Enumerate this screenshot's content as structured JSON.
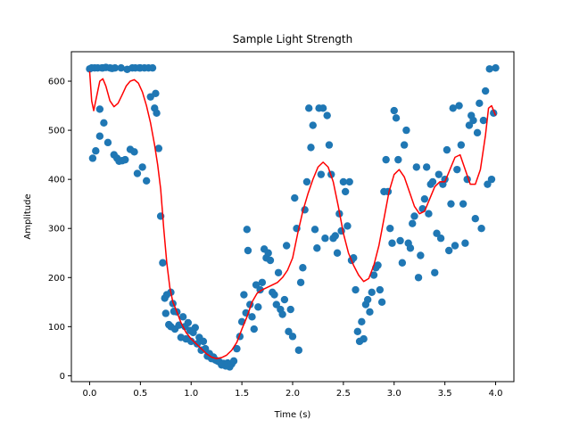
{
  "chart_data": {
    "type": "scatter",
    "title": "Sample Light Strength",
    "xlabel": "Time (s)",
    "ylabel": "Amplitude",
    "xlim": [
      -0.18,
      4.18
    ],
    "ylim": [
      -12,
      660
    ],
    "xticks": [
      0.0,
      0.5,
      1.0,
      1.5,
      2.0,
      2.5,
      3.0,
      3.5,
      4.0
    ],
    "xtick_labels": [
      "0.0",
      "0.5",
      "1.0",
      "1.5",
      "2.0",
      "2.5",
      "3.0",
      "3.5",
      "4.0"
    ],
    "yticks": [
      0,
      100,
      200,
      300,
      400,
      500,
      600
    ],
    "ytick_labels": [
      "0",
      "100",
      "200",
      "300",
      "400",
      "500",
      "600"
    ],
    "grid": false,
    "legend": "none",
    "series": [
      {
        "kind": "scatter",
        "color": "#1f77b4",
        "points": [
          [
            0.0,
            625
          ],
          [
            0.02,
            627
          ],
          [
            0.03,
            443
          ],
          [
            0.05,
            627
          ],
          [
            0.06,
            458
          ],
          [
            0.08,
            627
          ],
          [
            0.1,
            543
          ],
          [
            0.1,
            488
          ],
          [
            0.12,
            627
          ],
          [
            0.13,
            627
          ],
          [
            0.14,
            515
          ],
          [
            0.16,
            628
          ],
          [
            0.18,
            475
          ],
          [
            0.2,
            627
          ],
          [
            0.22,
            626
          ],
          [
            0.24,
            450
          ],
          [
            0.25,
            627
          ],
          [
            0.27,
            443
          ],
          [
            0.29,
            437
          ],
          [
            0.31,
            627
          ],
          [
            0.32,
            438
          ],
          [
            0.35,
            440
          ],
          [
            0.37,
            624
          ],
          [
            0.4,
            461
          ],
          [
            0.42,
            627
          ],
          [
            0.44,
            456
          ],
          [
            0.45,
            627
          ],
          [
            0.47,
            412
          ],
          [
            0.49,
            627
          ],
          [
            0.5,
            627
          ],
          [
            0.52,
            425
          ],
          [
            0.54,
            627
          ],
          [
            0.56,
            397
          ],
          [
            0.58,
            627
          ],
          [
            0.6,
            568
          ],
          [
            0.62,
            627
          ],
          [
            0.64,
            545
          ],
          [
            0.65,
            575
          ],
          [
            0.66,
            535
          ],
          [
            0.68,
            463
          ],
          [
            0.7,
            325
          ],
          [
            0.72,
            230
          ],
          [
            0.74,
            158
          ],
          [
            0.75,
            127
          ],
          [
            0.76,
            165
          ],
          [
            0.78,
            104
          ],
          [
            0.8,
            170
          ],
          [
            0.8,
            100
          ],
          [
            0.82,
            147
          ],
          [
            0.83,
            131
          ],
          [
            0.84,
            95
          ],
          [
            0.86,
            130
          ],
          [
            0.88,
            103
          ],
          [
            0.9,
            78
          ],
          [
            0.92,
            120
          ],
          [
            0.94,
            100
          ],
          [
            0.95,
            75
          ],
          [
            0.97,
            108
          ],
          [
            0.99,
            92
          ],
          [
            1.0,
            70
          ],
          [
            1.02,
            88
          ],
          [
            1.04,
            98
          ],
          [
            1.06,
            65
          ],
          [
            1.08,
            78
          ],
          [
            1.1,
            52
          ],
          [
            1.12,
            70
          ],
          [
            1.14,
            55
          ],
          [
            1.16,
            40
          ],
          [
            1.18,
            45
          ],
          [
            1.2,
            35
          ],
          [
            1.22,
            38
          ],
          [
            1.24,
            32
          ],
          [
            1.26,
            30
          ],
          [
            1.28,
            28
          ],
          [
            1.3,
            22
          ],
          [
            1.32,
            25
          ],
          [
            1.34,
            20
          ],
          [
            1.36,
            26
          ],
          [
            1.38,
            18
          ],
          [
            1.4,
            24
          ],
          [
            1.42,
            30
          ],
          [
            1.45,
            55
          ],
          [
            1.48,
            80
          ],
          [
            1.5,
            110
          ],
          [
            1.52,
            165
          ],
          [
            1.54,
            128
          ],
          [
            1.55,
            298
          ],
          [
            1.56,
            255
          ],
          [
            1.58,
            145
          ],
          [
            1.6,
            120
          ],
          [
            1.62,
            95
          ],
          [
            1.64,
            185
          ],
          [
            1.66,
            140
          ],
          [
            1.68,
            175
          ],
          [
            1.7,
            190
          ],
          [
            1.72,
            258
          ],
          [
            1.74,
            240
          ],
          [
            1.76,
            250
          ],
          [
            1.78,
            235
          ],
          [
            1.8,
            170
          ],
          [
            1.82,
            165
          ],
          [
            1.84,
            145
          ],
          [
            1.86,
            210
          ],
          [
            1.88,
            135
          ],
          [
            1.9,
            125
          ],
          [
            1.92,
            155
          ],
          [
            1.94,
            265
          ],
          [
            1.96,
            90
          ],
          [
            1.98,
            135
          ],
          [
            2.0,
            80
          ],
          [
            2.02,
            362
          ],
          [
            2.04,
            300
          ],
          [
            2.06,
            52
          ],
          [
            2.08,
            190
          ],
          [
            2.1,
            220
          ],
          [
            2.12,
            338
          ],
          [
            2.14,
            395
          ],
          [
            2.16,
            545
          ],
          [
            2.18,
            465
          ],
          [
            2.2,
            510
          ],
          [
            2.22,
            298
          ],
          [
            2.24,
            260
          ],
          [
            2.26,
            545
          ],
          [
            2.28,
            410
          ],
          [
            2.3,
            545
          ],
          [
            2.32,
            280
          ],
          [
            2.34,
            530
          ],
          [
            2.36,
            470
          ],
          [
            2.38,
            410
          ],
          [
            2.4,
            280
          ],
          [
            2.42,
            285
          ],
          [
            2.44,
            250
          ],
          [
            2.46,
            330
          ],
          [
            2.48,
            295
          ],
          [
            2.5,
            395
          ],
          [
            2.52,
            375
          ],
          [
            2.54,
            305
          ],
          [
            2.56,
            395
          ],
          [
            2.58,
            235
          ],
          [
            2.6,
            240
          ],
          [
            2.62,
            175
          ],
          [
            2.64,
            90
          ],
          [
            2.66,
            70
          ],
          [
            2.68,
            110
          ],
          [
            2.7,
            75
          ],
          [
            2.72,
            145
          ],
          [
            2.74,
            155
          ],
          [
            2.76,
            130
          ],
          [
            2.78,
            170
          ],
          [
            2.8,
            205
          ],
          [
            2.82,
            220
          ],
          [
            2.84,
            225
          ],
          [
            2.86,
            175
          ],
          [
            2.88,
            150
          ],
          [
            2.9,
            375
          ],
          [
            2.92,
            440
          ],
          [
            2.94,
            375
          ],
          [
            2.96,
            300
          ],
          [
            2.98,
            270
          ],
          [
            3.0,
            540
          ],
          [
            3.02,
            525
          ],
          [
            3.04,
            440
          ],
          [
            3.06,
            275
          ],
          [
            3.08,
            230
          ],
          [
            3.1,
            470
          ],
          [
            3.12,
            500
          ],
          [
            3.14,
            270
          ],
          [
            3.16,
            260
          ],
          [
            3.18,
            310
          ],
          [
            3.2,
            325
          ],
          [
            3.22,
            425
          ],
          [
            3.24,
            200
          ],
          [
            3.26,
            245
          ],
          [
            3.28,
            340
          ],
          [
            3.3,
            360
          ],
          [
            3.32,
            425
          ],
          [
            3.34,
            330
          ],
          [
            3.36,
            390
          ],
          [
            3.38,
            395
          ],
          [
            3.4,
            210
          ],
          [
            3.42,
            290
          ],
          [
            3.44,
            410
          ],
          [
            3.46,
            280
          ],
          [
            3.48,
            390
          ],
          [
            3.5,
            400
          ],
          [
            3.52,
            460
          ],
          [
            3.54,
            255
          ],
          [
            3.56,
            350
          ],
          [
            3.58,
            545
          ],
          [
            3.6,
            265
          ],
          [
            3.62,
            420
          ],
          [
            3.64,
            550
          ],
          [
            3.66,
            470
          ],
          [
            3.68,
            350
          ],
          [
            3.7,
            270
          ],
          [
            3.72,
            400
          ],
          [
            3.74,
            510
          ],
          [
            3.76,
            530
          ],
          [
            3.78,
            520
          ],
          [
            3.8,
            320
          ],
          [
            3.82,
            495
          ],
          [
            3.84,
            555
          ],
          [
            3.86,
            300
          ],
          [
            3.88,
            520
          ],
          [
            3.9,
            580
          ],
          [
            3.92,
            390
          ],
          [
            3.94,
            625
          ],
          [
            3.96,
            400
          ],
          [
            3.98,
            535
          ],
          [
            4.0,
            627
          ]
        ]
      },
      {
        "kind": "line",
        "color": "#ff0000",
        "points": [
          [
            0.0,
            620
          ],
          [
            0.02,
            560
          ],
          [
            0.04,
            540
          ],
          [
            0.07,
            570
          ],
          [
            0.1,
            600
          ],
          [
            0.13,
            605
          ],
          [
            0.16,
            590
          ],
          [
            0.2,
            560
          ],
          [
            0.24,
            548
          ],
          [
            0.28,
            555
          ],
          [
            0.32,
            572
          ],
          [
            0.36,
            590
          ],
          [
            0.4,
            600
          ],
          [
            0.44,
            603
          ],
          [
            0.48,
            596
          ],
          [
            0.52,
            578
          ],
          [
            0.56,
            550
          ],
          [
            0.6,
            515
          ],
          [
            0.64,
            470
          ],
          [
            0.67,
            430
          ],
          [
            0.7,
            380
          ],
          [
            0.73,
            300
          ],
          [
            0.76,
            230
          ],
          [
            0.79,
            180
          ],
          [
            0.82,
            150
          ],
          [
            0.86,
            130
          ],
          [
            0.9,
            108
          ],
          [
            0.95,
            88
          ],
          [
            1.0,
            75
          ],
          [
            1.05,
            65
          ],
          [
            1.1,
            55
          ],
          [
            1.15,
            45
          ],
          [
            1.2,
            38
          ],
          [
            1.25,
            35
          ],
          [
            1.3,
            37
          ],
          [
            1.35,
            42
          ],
          [
            1.4,
            52
          ],
          [
            1.45,
            68
          ],
          [
            1.5,
            95
          ],
          [
            1.55,
            120
          ],
          [
            1.6,
            150
          ],
          [
            1.65,
            168
          ],
          [
            1.7,
            175
          ],
          [
            1.75,
            180
          ],
          [
            1.8,
            185
          ],
          [
            1.85,
            190
          ],
          [
            1.9,
            200
          ],
          [
            1.95,
            215
          ],
          [
            2.0,
            240
          ],
          [
            2.05,
            290
          ],
          [
            2.1,
            335
          ],
          [
            2.15,
            370
          ],
          [
            2.2,
            400
          ],
          [
            2.25,
            425
          ],
          [
            2.3,
            435
          ],
          [
            2.35,
            425
          ],
          [
            2.4,
            395
          ],
          [
            2.45,
            345
          ],
          [
            2.5,
            290
          ],
          [
            2.55,
            250
          ],
          [
            2.6,
            225
          ],
          [
            2.65,
            205
          ],
          [
            2.7,
            192
          ],
          [
            2.75,
            198
          ],
          [
            2.8,
            225
          ],
          [
            2.85,
            265
          ],
          [
            2.9,
            320
          ],
          [
            2.95,
            375
          ],
          [
            3.0,
            410
          ],
          [
            3.05,
            420
          ],
          [
            3.1,
            405
          ],
          [
            3.15,
            375
          ],
          [
            3.2,
            345
          ],
          [
            3.25,
            330
          ],
          [
            3.3,
            335
          ],
          [
            3.35,
            360
          ],
          [
            3.4,
            385
          ],
          [
            3.45,
            395
          ],
          [
            3.5,
            395
          ],
          [
            3.55,
            420
          ],
          [
            3.6,
            445
          ],
          [
            3.65,
            450
          ],
          [
            3.7,
            420
          ],
          [
            3.75,
            390
          ],
          [
            3.8,
            390
          ],
          [
            3.85,
            420
          ],
          [
            3.9,
            490
          ],
          [
            3.93,
            545
          ],
          [
            3.96,
            550
          ],
          [
            4.0,
            530
          ]
        ]
      }
    ]
  }
}
